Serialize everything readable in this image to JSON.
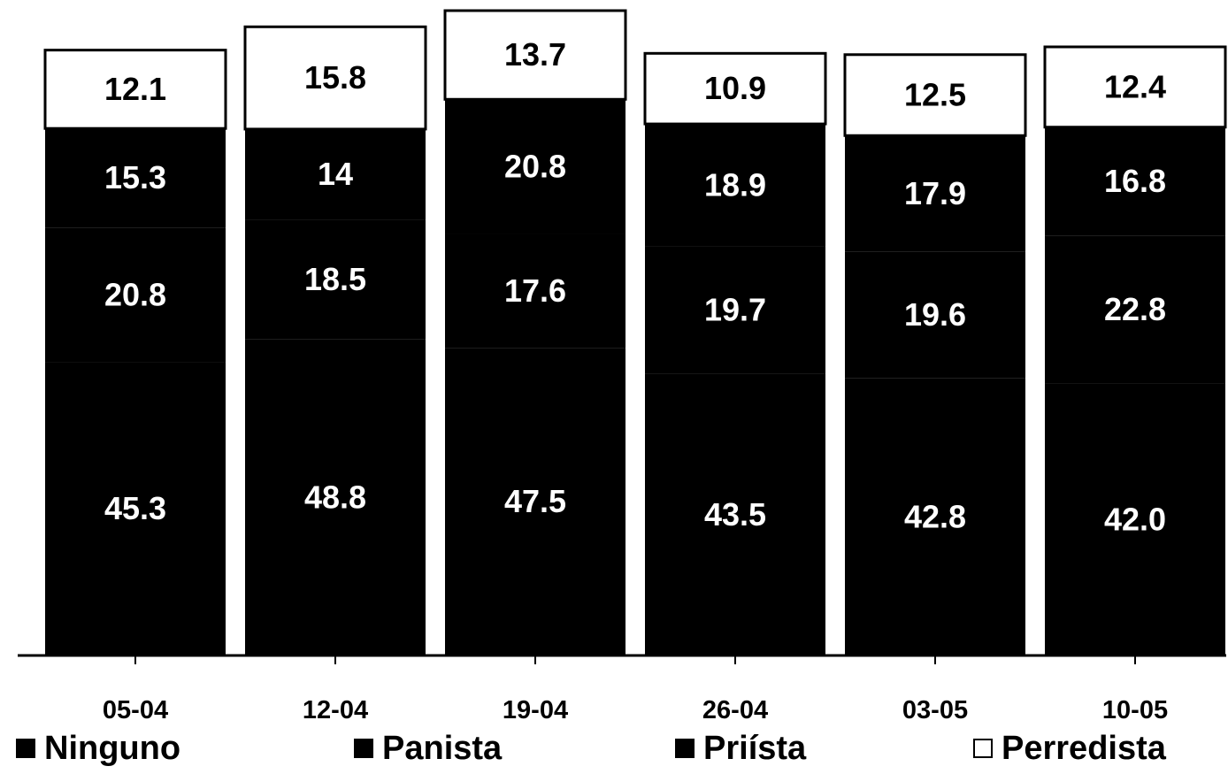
{
  "chart_data": {
    "type": "bar",
    "stacked": true,
    "categories": [
      "05-04",
      "12-04",
      "19-04",
      "26-04",
      "03-05",
      "10-05"
    ],
    "series": [
      {
        "name": "Ninguno",
        "values": [
          45.3,
          48.8,
          47.5,
          43.5,
          42.8,
          42.0
        ],
        "color": "#000000"
      },
      {
        "name": "Panista",
        "values": [
          20.8,
          18.5,
          17.6,
          19.7,
          19.6,
          22.8
        ],
        "color": "#000000"
      },
      {
        "name": "Priísta",
        "values": [
          15.3,
          14,
          20.8,
          18.9,
          17.9,
          16.8
        ],
        "color": "#000000"
      },
      {
        "name": "Perredista",
        "values": [
          12.1,
          15.8,
          13.7,
          10.9,
          12.5,
          12.4
        ],
        "color": "#ffffff"
      }
    ],
    "value_labels": [
      [
        "45.3",
        "48.8",
        "47.5",
        "43.5",
        "42.8",
        "42.0"
      ],
      [
        "20.8",
        "18.5",
        "17.6",
        "19.7",
        "19.6",
        "22.8"
      ],
      [
        "15.3",
        "14",
        "20.8",
        "18.9",
        "17.9",
        "16.8"
      ],
      [
        "12.1",
        "15.8",
        "13.7",
        "10.9",
        "12.5",
        "12.4"
      ]
    ],
    "title": "",
    "xlabel": "",
    "ylabel": "",
    "ylim": [
      0,
      100
    ],
    "grid": false,
    "legend_position": "bottom"
  }
}
